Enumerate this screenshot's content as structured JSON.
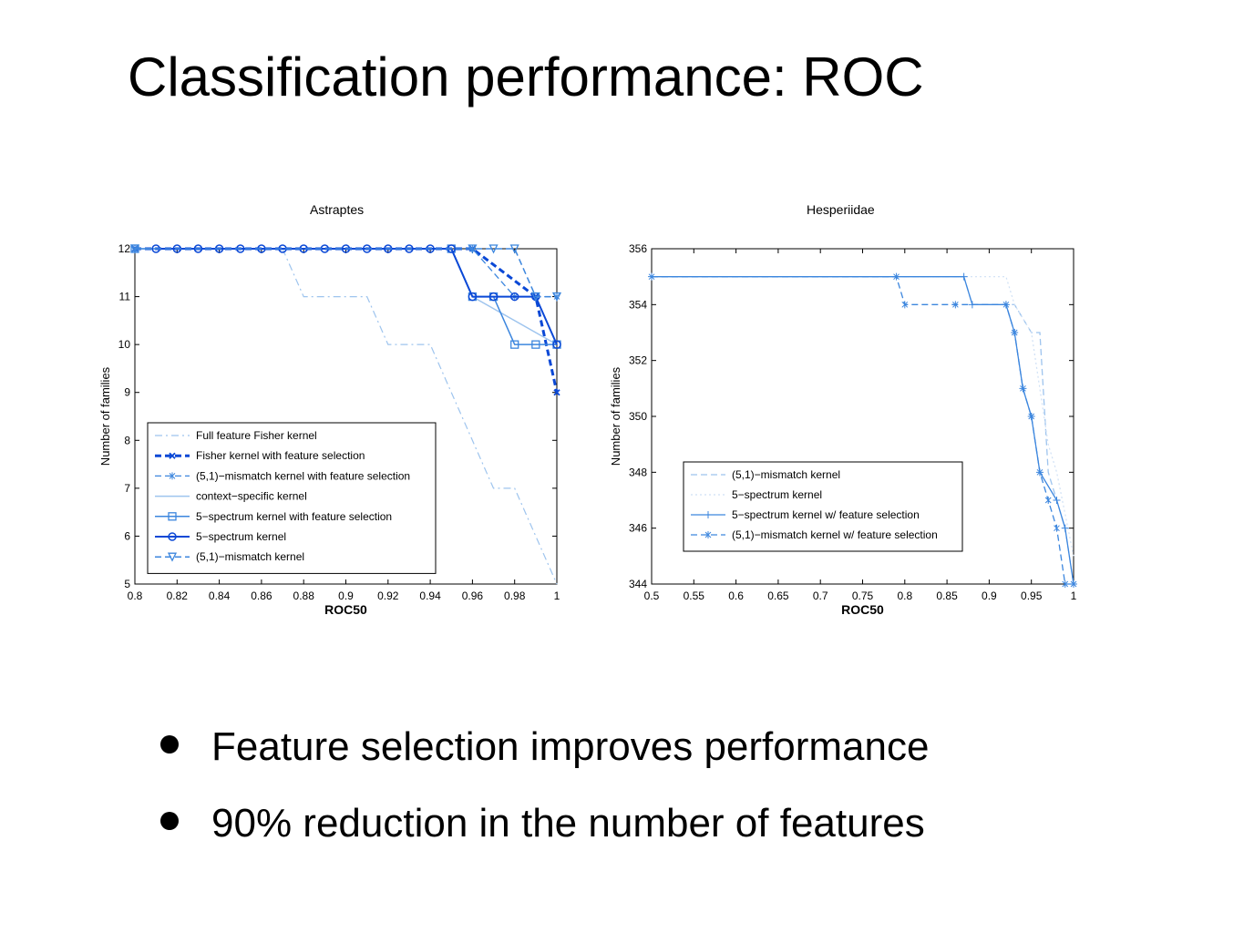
{
  "title": "Classification performance: ROC",
  "bullets": [
    "Feature selection improves performance",
    "90% reduction in the number of features"
  ],
  "colors": {
    "light": "#9ec4ee",
    "mid": "#3c86de",
    "dark": "#0a48d6",
    "axis": "#000000"
  },
  "chart_data": [
    {
      "type": "line",
      "title": "Astraptes",
      "xlabel": "ROC50",
      "ylabel": "Number of families",
      "xlim": [
        0.8,
        1.0
      ],
      "ylim": [
        5,
        12
      ],
      "xticks": [
        "0.8",
        "0.82",
        "0.84",
        "0.86",
        "0.88",
        "0.9",
        "0.92",
        "0.94",
        "0.96",
        "0.98",
        "1"
      ],
      "yticks": [
        "5",
        "6",
        "7",
        "8",
        "9",
        "10",
        "11",
        "12"
      ],
      "grid": false,
      "legend_position": "bottom-left",
      "series": [
        {
          "name": "Full feature Fisher kernel",
          "color": "#9ec4ee",
          "dash": "8 4 2 4",
          "width": 1.2,
          "marker": "none",
          "points": [
            [
              0.8,
              12
            ],
            [
              0.87,
              12
            ],
            [
              0.88,
              11
            ],
            [
              0.91,
              11
            ],
            [
              0.92,
              10
            ],
            [
              0.94,
              10
            ],
            [
              0.97,
              7
            ],
            [
              0.98,
              7
            ],
            [
              1.0,
              5
            ]
          ]
        },
        {
          "name": "Fisher kernel with feature selection",
          "color": "#0a48d6",
          "dash": "7 4",
          "width": 3,
          "marker": "x",
          "points": [
            [
              0.8,
              12
            ],
            [
              0.96,
              12
            ],
            [
              0.99,
              11
            ],
            [
              1.0,
              9
            ]
          ]
        },
        {
          "name": "(5,1)−mismatch kernel with feature selection",
          "color": "#3c86de",
          "dash": "7 4",
          "width": 1.3,
          "marker": "star",
          "points": [
            [
              0.8,
              12
            ],
            [
              0.96,
              12
            ],
            [
              0.98,
              11
            ],
            [
              1.0,
              11
            ]
          ]
        },
        {
          "name": "context−specific kernel",
          "color": "#9ec4ee",
          "dash": "",
          "width": 1.5,
          "marker": "none",
          "points": [
            [
              0.8,
              12
            ],
            [
              0.95,
              12
            ],
            [
              0.96,
              11
            ],
            [
              1.0,
              10
            ]
          ]
        },
        {
          "name": "5−spectrum kernel with feature selection",
          "color": "#3c86de",
          "dash": "",
          "width": 1.5,
          "marker": "square",
          "points": [
            [
              0.8,
              12
            ],
            [
              0.95,
              12
            ],
            [
              0.96,
              11
            ],
            [
              0.97,
              11
            ],
            [
              0.98,
              10
            ],
            [
              0.99,
              10
            ],
            [
              1.0,
              10
            ]
          ]
        },
        {
          "name": "5−spectrum kernel",
          "color": "#0a48d6",
          "dash": "",
          "width": 2,
          "marker": "circle",
          "points": [
            [
              0.81,
              12
            ],
            [
              0.82,
              12
            ],
            [
              0.83,
              12
            ],
            [
              0.84,
              12
            ],
            [
              0.85,
              12
            ],
            [
              0.86,
              12
            ],
            [
              0.87,
              12
            ],
            [
              0.88,
              12
            ],
            [
              0.89,
              12
            ],
            [
              0.9,
              12
            ],
            [
              0.91,
              12
            ],
            [
              0.92,
              12
            ],
            [
              0.93,
              12
            ],
            [
              0.94,
              12
            ],
            [
              0.95,
              12
            ],
            [
              0.96,
              11
            ],
            [
              0.97,
              11
            ],
            [
              0.98,
              11
            ],
            [
              0.99,
              11
            ],
            [
              1.0,
              10
            ]
          ]
        },
        {
          "name": "(5,1)−mismatch kernel",
          "color": "#3c86de",
          "dash": "7 4",
          "width": 1.5,
          "marker": "triangle",
          "points": [
            [
              0.8,
              12
            ],
            [
              0.96,
              12
            ],
            [
              0.97,
              12
            ],
            [
              0.98,
              12
            ],
            [
              0.99,
              11
            ],
            [
              1.0,
              11
            ]
          ]
        }
      ]
    },
    {
      "type": "line",
      "title": "Hesperiidae",
      "xlabel": "ROC50",
      "ylabel": "Number of families",
      "xlim": [
        0.5,
        1.0
      ],
      "ylim": [
        344,
        356
      ],
      "xticks": [
        "0.5",
        "0.55",
        "0.6",
        "0.65",
        "0.7",
        "0.75",
        "0.8",
        "0.85",
        "0.9",
        "0.95",
        "1"
      ],
      "yticks": [
        "344",
        "346",
        "348",
        "350",
        "352",
        "354",
        "356"
      ],
      "grid": false,
      "legend_position": "bottom-left",
      "series": [
        {
          "name": "(5,1)−mismatch kernel",
          "color": "#9ec4ee",
          "dash": "7 4",
          "width": 1.3,
          "marker": "none",
          "points": [
            [
              0.5,
              355
            ],
            [
              0.87,
              355
            ],
            [
              0.88,
              354
            ],
            [
              0.92,
              354
            ],
            [
              0.93,
              354
            ],
            [
              0.95,
              353
            ],
            [
              0.96,
              353
            ],
            [
              0.97,
              348
            ],
            [
              0.99,
              346
            ],
            [
              1.0,
              344
            ]
          ]
        },
        {
          "name": "5−spectrum kernel",
          "color": "#cfe0f5",
          "dash": "2 3",
          "width": 1.2,
          "marker": "none",
          "points": [
            [
              0.5,
              355
            ],
            [
              0.92,
              355
            ],
            [
              0.93,
              354
            ],
            [
              0.95,
              353
            ],
            [
              0.97,
              349
            ],
            [
              0.98,
              348
            ],
            [
              1.0,
              345
            ]
          ]
        },
        {
          "name": "5−spectrum kernel w/ feature selection",
          "color": "#3c86de",
          "dash": "",
          "width": 1.3,
          "marker": "plus",
          "points": [
            [
              0.5,
              355
            ],
            [
              0.87,
              355
            ],
            [
              0.88,
              354
            ],
            [
              0.92,
              354
            ],
            [
              0.93,
              353
            ],
            [
              0.94,
              351
            ],
            [
              0.95,
              350
            ],
            [
              0.96,
              348
            ],
            [
              0.98,
              347
            ],
            [
              0.99,
              346
            ],
            [
              1.0,
              344
            ]
          ]
        },
        {
          "name": "(5,1)−mismatch kernel w/ feature selection",
          "color": "#3c86de",
          "dash": "7 4",
          "width": 1.3,
          "marker": "star",
          "points": [
            [
              0.5,
              355
            ],
            [
              0.79,
              355
            ],
            [
              0.8,
              354
            ],
            [
              0.86,
              354
            ],
            [
              0.92,
              354
            ],
            [
              0.93,
              353
            ],
            [
              0.94,
              351
            ],
            [
              0.95,
              350
            ],
            [
              0.96,
              348
            ],
            [
              0.97,
              347
            ],
            [
              0.98,
              346
            ],
            [
              0.99,
              344
            ],
            [
              1.0,
              344
            ]
          ]
        }
      ]
    }
  ]
}
